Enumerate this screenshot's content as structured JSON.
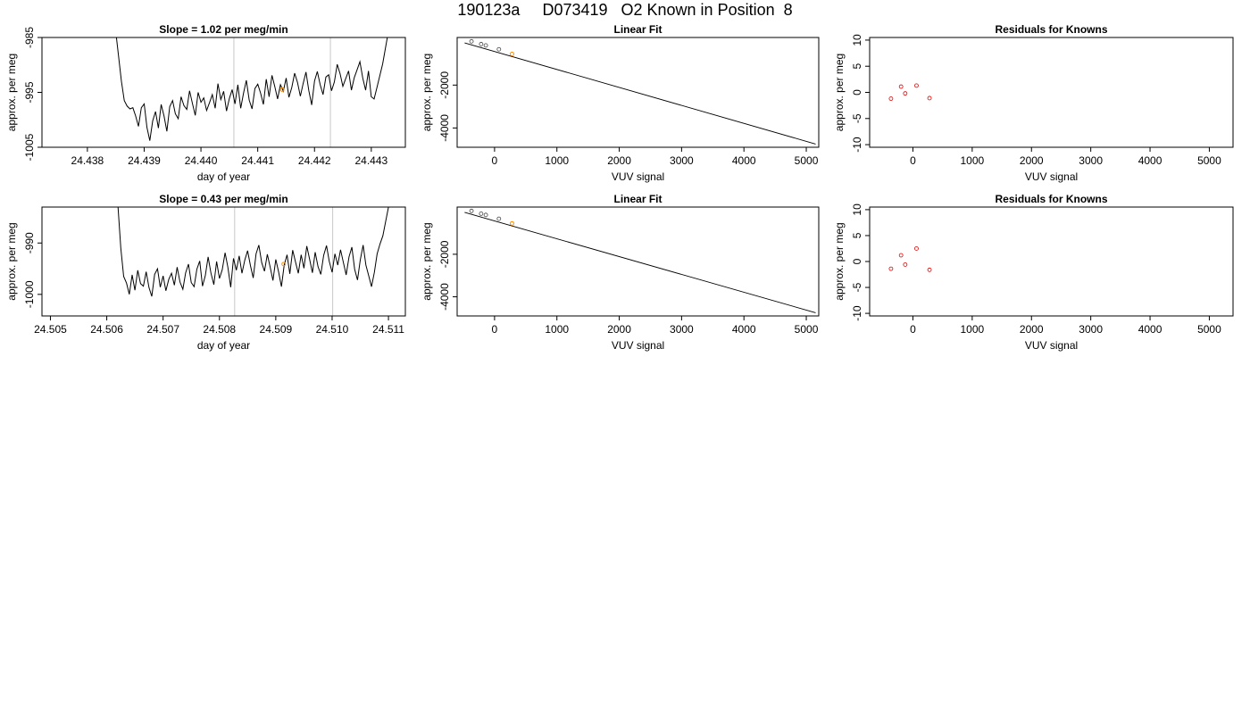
{
  "page": {
    "title": "190123a     D073419   O2 Known in Position  8"
  },
  "colors": {
    "axis": "#000000",
    "trace": "#000000",
    "vline": "#c8c8c8",
    "highlight": "#ff8c00",
    "residual": "#dd0000",
    "known_point": "#444444"
  },
  "chart_data": [
    {
      "type": "line",
      "title": "Slope =  1.02  per meg/min",
      "xlabel": "day of year",
      "ylabel": "approx. per meg",
      "xlim": [
        24.4372,
        24.4436
      ],
      "ylim": [
        -1005,
        -985
      ],
      "xticks": [
        "24.438",
        "24.439",
        "24.440",
        "24.441",
        "24.442",
        "24.443"
      ],
      "yticks": [
        "-1005",
        "-995",
        "-985"
      ],
      "vlines": [
        24.44058,
        24.44228
      ],
      "highlight_point": [
        24.44143,
        -994.5
      ],
      "series": [
        {
          "x": [
            24.4385,
            24.4386,
            24.43865,
            24.4387,
            24.43875,
            24.4388,
            24.43885,
            24.4389,
            24.43895,
            24.439,
            24.43905,
            24.4391,
            24.43915,
            24.4392,
            24.43925,
            24.4393,
            24.43935,
            24.4394,
            24.43945,
            24.4395,
            24.43955,
            24.4396,
            24.43965,
            24.4397,
            24.43975,
            24.4398,
            24.43985,
            24.4399,
            24.43995,
            24.44,
            24.44005,
            24.4401,
            24.44015,
            24.4402,
            24.44025,
            24.4403,
            24.44035,
            24.4404,
            24.44045,
            24.4405,
            24.44055,
            24.4406,
            24.44065,
            24.4407,
            24.44075,
            24.4408,
            24.44085,
            24.4409,
            24.44095,
            24.441,
            24.44105,
            24.4411,
            24.44115,
            24.4412,
            24.44125,
            24.4413,
            24.44135,
            24.4414,
            24.44145,
            24.4415,
            24.44155,
            24.4416,
            24.44165,
            24.4417,
            24.44175,
            24.4418,
            24.44185,
            24.4419,
            24.44195,
            24.442,
            24.44205,
            24.4421,
            24.44215,
            24.4422,
            24.44225,
            24.4423,
            24.44235,
            24.4424,
            24.44245,
            24.4425,
            24.44255,
            24.4426,
            24.44265,
            24.4427,
            24.44275,
            24.4428,
            24.44285,
            24.4429,
            24.44295,
            24.443,
            24.44305,
            24.4431,
            24.4432,
            24.4433
          ],
          "y": [
            -984,
            -993,
            -996.5,
            -997.5,
            -998,
            -997.8,
            -999.3,
            -1001.2,
            -997.8,
            -997.1,
            -1001.4,
            -1003.8,
            -1000.2,
            -998.5,
            -1001.5,
            -997.2,
            -999.3,
            -1002.1,
            -997.6,
            -996.5,
            -998.9,
            -999.8,
            -995.8,
            -997.4,
            -998.1,
            -994.7,
            -997,
            -999.2,
            -995,
            -996.8,
            -996,
            -998.3,
            -996.9,
            -995.4,
            -997.9,
            -993.4,
            -996.3,
            -994.8,
            -998.4,
            -996.1,
            -994.5,
            -997.1,
            -993.6,
            -997.9,
            -995.1,
            -992.8,
            -996.4,
            -998,
            -994.3,
            -993.5,
            -995.1,
            -997.2,
            -992.6,
            -995.8,
            -991.9,
            -993.9,
            -996.2,
            -993.6,
            -994.8,
            -992.4,
            -995.9,
            -994.1,
            -991.5,
            -993.2,
            -995.7,
            -993.4,
            -991.3,
            -994.7,
            -997.3,
            -992.9,
            -991.2,
            -993.6,
            -995.4,
            -992.2,
            -991.8,
            -994.7,
            -993.1,
            -989.9,
            -991.6,
            -993.9,
            -992.5,
            -991.1,
            -994.6,
            -992.3,
            -990.9,
            -989.4,
            -992.4,
            -994.6,
            -991.1,
            -995.8,
            -996.2,
            -994.1,
            -989.8,
            -984
          ]
        }
      ]
    },
    {
      "type": "scatter",
      "title": "Linear Fit",
      "xlabel": "VUV signal",
      "ylabel": "approx. per meg",
      "xlim": [
        -600,
        5200
      ],
      "ylim": [
        -4900,
        220
      ],
      "xticks": [
        "0",
        "1000",
        "2000",
        "3000",
        "4000",
        "5000"
      ],
      "yticks": [
        "-2000",
        "-4000"
      ],
      "fit_line": [
        [
          -480,
          -30
        ],
        [
          5150,
          -4750
        ]
      ],
      "points": {
        "x": [
          -370,
          -215,
          -140,
          70
        ],
        "y": [
          40,
          -90,
          -150,
          -330
        ]
      },
      "highlight_point": [
        280,
        -550
      ]
    },
    {
      "type": "scatter",
      "title": "Residuals for Knowns",
      "xlabel": "VUV signal",
      "ylabel": "approx. per meg",
      "xlim": [
        -730,
        5400
      ],
      "ylim": [
        -10.5,
        10.5
      ],
      "xticks": [
        "0",
        "1000",
        "2000",
        "3000",
        "4000",
        "5000"
      ],
      "yticks": [
        "-10",
        "-5",
        "0",
        "5",
        "10"
      ],
      "points": {
        "x": [
          -370,
          -200,
          -130,
          60,
          280
        ],
        "y": [
          -1.2,
          1.1,
          -0.2,
          1.3,
          -1.1
        ]
      }
    },
    {
      "type": "line",
      "title": "Slope =  0.43  per meg/min",
      "xlabel": "day of year",
      "ylabel": "approx. per meg",
      "xlim": [
        24.50485,
        24.5113
      ],
      "ylim": [
        -1004.2,
        -983
      ],
      "xticks": [
        "24.505",
        "24.506",
        "24.507",
        "24.508",
        "24.509",
        "24.510",
        "24.511"
      ],
      "yticks": [
        "-1000",
        "-990"
      ],
      "vlines": [
        24.50827,
        24.51001
      ],
      "highlight_point": [
        24.50914,
        -994.1
      ],
      "series": [
        {
          "x": [
            24.5062,
            24.50625,
            24.5063,
            24.50635,
            24.5064,
            24.50645,
            24.5065,
            24.50655,
            24.5066,
            24.50665,
            24.5067,
            24.50675,
            24.5068,
            24.50685,
            24.5069,
            24.50695,
            24.507,
            24.50705,
            24.5071,
            24.50715,
            24.5072,
            24.50725,
            24.5073,
            24.50735,
            24.5074,
            24.50745,
            24.5075,
            24.50755,
            24.5076,
            24.50765,
            24.5077,
            24.50775,
            24.5078,
            24.50785,
            24.5079,
            24.50795,
            24.508,
            24.50805,
            24.5081,
            24.50815,
            24.5082,
            24.50825,
            24.5083,
            24.50835,
            24.5084,
            24.50845,
            24.5085,
            24.50855,
            24.5086,
            24.50865,
            24.5087,
            24.50875,
            24.5088,
            24.50885,
            24.5089,
            24.50895,
            24.509,
            24.50905,
            24.5091,
            24.50915,
            24.5092,
            24.50925,
            24.5093,
            24.50935,
            24.5094,
            24.50945,
            24.5095,
            24.50955,
            24.5096,
            24.50965,
            24.5097,
            24.50975,
            24.5098,
            24.50985,
            24.5099,
            24.50995,
            24.51,
            24.51005,
            24.5101,
            24.51015,
            24.5102,
            24.51025,
            24.5103,
            24.51035,
            24.5104,
            24.51045,
            24.5105,
            24.51055,
            24.5106,
            24.51065,
            24.5107,
            24.51075,
            24.5108,
            24.51085,
            24.5109,
            24.511
          ],
          "y": [
            -983,
            -991,
            -996.5,
            -997.8,
            -1000,
            -996.2,
            -999.2,
            -995.3,
            -997.9,
            -998.4,
            -995.6,
            -998.7,
            -1000.4,
            -996.1,
            -995,
            -998.6,
            -996.4,
            -999.3,
            -997.1,
            -995.9,
            -998.2,
            -994.7,
            -997.6,
            -999,
            -995.8,
            -994.1,
            -997.7,
            -998.5,
            -995.1,
            -993.5,
            -998.4,
            -996.3,
            -992.7,
            -995.9,
            -998.1,
            -993.6,
            -996.9,
            -995.2,
            -991.9,
            -994.7,
            -998.6,
            -993,
            -995.3,
            -992.5,
            -995.9,
            -993.3,
            -991.5,
            -994.4,
            -996.8,
            -992.1,
            -990.4,
            -993.8,
            -995.5,
            -992.2,
            -994.7,
            -997.3,
            -993.2,
            -995.6,
            -998.5,
            -994.3,
            -992.3,
            -996,
            -991.4,
            -993.7,
            -995.9,
            -992.3,
            -994.9,
            -990.6,
            -993.1,
            -995.8,
            -991.8,
            -994.6,
            -996.1,
            -992.4,
            -990.5,
            -993.6,
            -995.7,
            -992.1,
            -994.3,
            -991.3,
            -993.8,
            -996.2,
            -992.7,
            -990.8,
            -995.1,
            -997.2,
            -993.3,
            -990.4,
            -994.3,
            -996.4,
            -998.5,
            -995.7,
            -992.1,
            -990.2,
            -988.6,
            -983
          ]
        }
      ]
    },
    {
      "type": "scatter",
      "title": "Linear Fit",
      "xlabel": "VUV signal",
      "ylabel": "approx. per meg",
      "xlim": [
        -600,
        5200
      ],
      "ylim": [
        -4900,
        220
      ],
      "xticks": [
        "0",
        "1000",
        "2000",
        "3000",
        "4000",
        "5000"
      ],
      "yticks": [
        "-2000",
        "-4000"
      ],
      "fit_line": [
        [
          -480,
          -30
        ],
        [
          5150,
          -4750
        ]
      ],
      "points": {
        "x": [
          -370,
          -215,
          -140,
          70
        ],
        "y": [
          40,
          -90,
          -150,
          -330
        ]
      },
      "highlight_point": [
        280,
        -550
      ]
    },
    {
      "type": "scatter",
      "title": "Residuals for Knowns",
      "xlabel": "VUV signal",
      "ylabel": "approx. per meg",
      "xlim": [
        -730,
        5400
      ],
      "ylim": [
        -10.5,
        10.5
      ],
      "xticks": [
        "0",
        "1000",
        "2000",
        "3000",
        "4000",
        "5000"
      ],
      "yticks": [
        "-10",
        "-5",
        "0",
        "5",
        "10"
      ],
      "points": {
        "x": [
          -370,
          -200,
          -130,
          60,
          280
        ],
        "y": [
          -1.4,
          1.2,
          -0.6,
          2.5,
          -1.6
        ]
      }
    }
  ]
}
